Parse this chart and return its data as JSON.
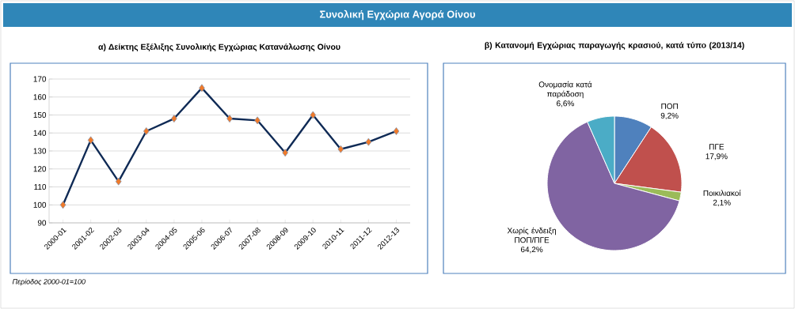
{
  "chart_data": [
    {
      "type": "other",
      "title": "Συνολική Εγχώρια Αγορά Οίνου"
    },
    {
      "type": "line",
      "title": "α) Δείκτης Εξέλιξης Συνολικής Εγχώριας Κατανάλωσης Οίνου",
      "categories": [
        "2000-01",
        "2001-02",
        "2002-03",
        "2003-04",
        "2004-05",
        "2005-06",
        "2006-07",
        "2007-08",
        "2008-09",
        "2009-10",
        "2010-11",
        "2011-12",
        "2012-13"
      ],
      "series": [
        {
          "color": "#0f2a55",
          "values": [
            100,
            136,
            113,
            141,
            148,
            165,
            148,
            147,
            129,
            150,
            131,
            135,
            141
          ]
        }
      ],
      "ylim": [
        90,
        170
      ],
      "yticks": [
        90,
        100,
        110,
        120,
        130,
        140,
        150,
        160,
        170
      ],
      "grid": "y",
      "marker": "diamond",
      "line_style": "solid",
      "annotations": [
        "Περίοδος  2000-01=100"
      ]
    },
    {
      "type": "pie",
      "title": "β) Κατανομή Εγχώριας παραγωγής κρασιού, κατά τύπο  (2013/14)",
      "categories": [
        "ΠΟΠ",
        "ΠΓΕ",
        "Ποικιλιακοί",
        "Χωρίς ένδειξη ΠΟΠ/ΠΓΕ",
        "Ονομασία κατά παράδοση"
      ],
      "values": [
        9.2,
        17.9,
        2.1,
        64.2,
        6.6
      ],
      "colors": [
        "#4f81bd",
        "#c0504d",
        "#9bbb59",
        "#8064a2",
        "#4bacc6"
      ],
      "value_labels": [
        "9,2%",
        "17,9%",
        "2,1%",
        "64,2%",
        "6,6%"
      ]
    }
  ]
}
